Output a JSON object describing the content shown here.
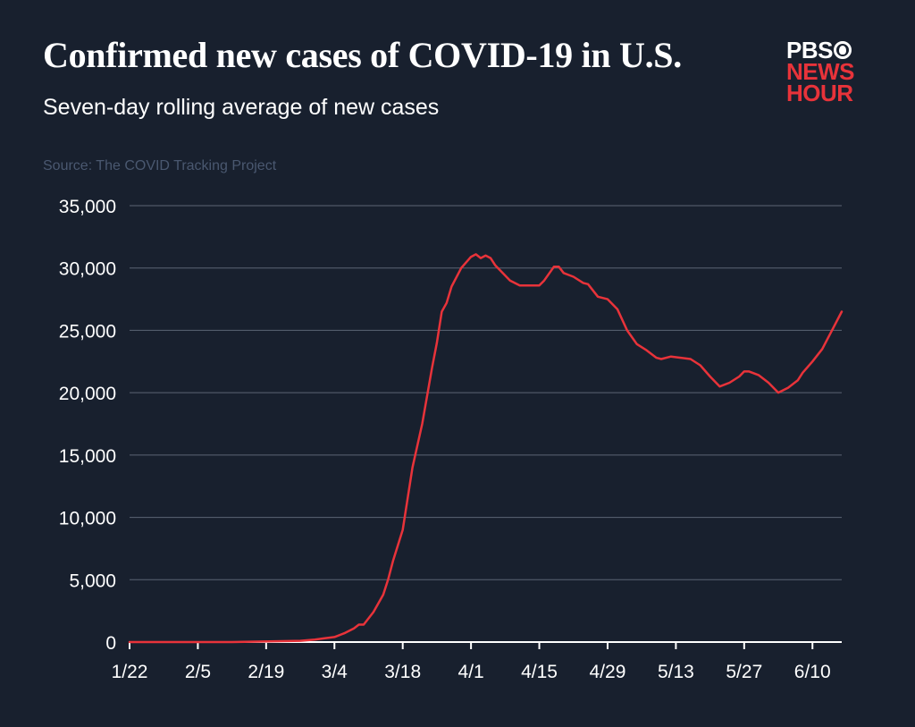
{
  "header": {
    "title": "Confirmed new cases of COVID-19 in U.S.",
    "subtitle": "Seven-day rolling average of new cases",
    "source": "Source: The COVID Tracking Project"
  },
  "logo": {
    "line1": "PBS",
    "line2": "NEWS",
    "line3": "HOUR",
    "icon": "pbs-head-icon",
    "accent": "#e8333a"
  },
  "colors": {
    "background": "#18202e",
    "line": "#e8333a",
    "grid": "#5b6474"
  },
  "chart_data": {
    "type": "line",
    "title": "Confirmed new cases of COVID-19 in U.S.",
    "subtitle": "Seven-day rolling average of new cases",
    "xlabel": "",
    "ylabel": "",
    "ylim": [
      0,
      35000
    ],
    "xlim": [
      "2020-01-22",
      "2020-06-16"
    ],
    "yticks": [
      0,
      5000,
      10000,
      15000,
      20000,
      25000,
      30000,
      35000
    ],
    "ytick_labels": [
      "0",
      "5,000",
      "10,000",
      "15,000",
      "20,000",
      "25,000",
      "30,000",
      "35,000"
    ],
    "xticks": [
      "2020-01-22",
      "2020-02-05",
      "2020-02-19",
      "2020-03-04",
      "2020-03-18",
      "2020-04-01",
      "2020-04-15",
      "2020-04-29",
      "2020-05-13",
      "2020-05-27",
      "2020-06-10"
    ],
    "xtick_labels": [
      "1/22",
      "2/5",
      "2/19",
      "3/4",
      "3/18",
      "4/1",
      "4/15",
      "4/29",
      "5/13",
      "5/27",
      "6/10"
    ],
    "grid": true,
    "legend": "none",
    "series": [
      {
        "x": [
          "2020-01-22",
          "2020-02-12",
          "2020-02-26",
          "2020-02-29",
          "2020-03-02",
          "2020-03-04",
          "2020-03-06",
          "2020-03-08",
          "2020-03-09",
          "2020-03-10",
          "2020-03-12",
          "2020-03-14",
          "2020-03-15",
          "2020-03-16",
          "2020-03-18",
          "2020-03-20",
          "2020-03-22",
          "2020-03-24",
          "2020-03-25",
          "2020-03-26",
          "2020-03-27",
          "2020-03-28",
          "2020-03-30",
          "2020-04-01",
          "2020-04-02",
          "2020-04-03",
          "2020-04-04",
          "2020-04-05",
          "2020-04-06",
          "2020-04-07",
          "2020-04-09",
          "2020-04-11",
          "2020-04-13",
          "2020-04-15",
          "2020-04-16",
          "2020-04-18",
          "2020-04-19",
          "2020-04-20",
          "2020-04-22",
          "2020-04-24",
          "2020-04-25",
          "2020-04-27",
          "2020-04-29",
          "2020-05-01",
          "2020-05-03",
          "2020-05-05",
          "2020-05-07",
          "2020-05-09",
          "2020-05-10",
          "2020-05-12",
          "2020-05-14",
          "2020-05-16",
          "2020-05-18",
          "2020-05-20",
          "2020-05-22",
          "2020-05-24",
          "2020-05-26",
          "2020-05-27",
          "2020-05-28",
          "2020-05-30",
          "2020-06-01",
          "2020-06-03",
          "2020-06-05",
          "2020-06-07",
          "2020-06-08",
          "2020-06-10",
          "2020-06-12",
          "2020-06-14",
          "2020-06-16"
        ],
        "values": [
          0,
          0,
          100,
          200,
          300,
          400,
          700,
          1100,
          1400,
          1400,
          2400,
          3800,
          5000,
          6500,
          9000,
          14000,
          17500,
          22000,
          24000,
          26500,
          27200,
          28500,
          30000,
          30900,
          31100,
          30800,
          31000,
          30800,
          30200,
          29800,
          29000,
          28600,
          28600,
          28600,
          29000,
          30100,
          30100,
          29600,
          29300,
          28800,
          28700,
          27700,
          27500,
          26700,
          25000,
          23900,
          23400,
          22800,
          22700,
          22900,
          22800,
          22700,
          22200,
          21300,
          20500,
          20800,
          21300,
          21700,
          21700,
          21400,
          20800,
          20000,
          20400,
          21000,
          21600,
          22500,
          23500,
          25000,
          26500
        ]
      }
    ]
  }
}
